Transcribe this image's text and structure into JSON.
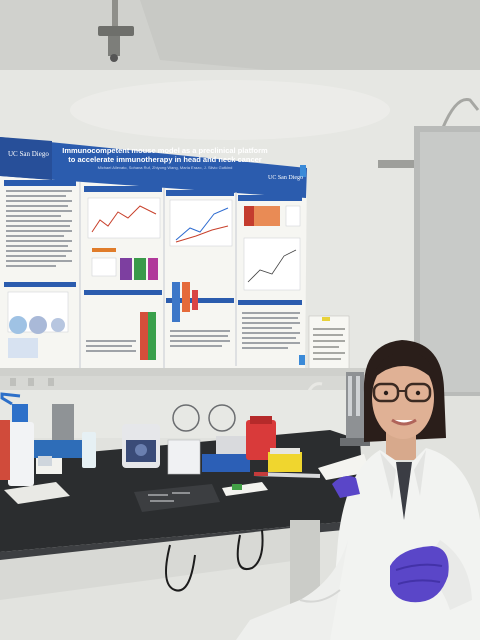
{
  "poster": {
    "title_line1": "Immunocompetent mouse model as a preclinical platform",
    "title_line2": "to accelerate immunotherapy in head and neck cancer",
    "authors": "Michael Allevato, Sohana Ruf, Zhiyong Wang, Maria Erazo, J. Silvio Gutkind",
    "logo_left": "UC San Diego",
    "logo_right": "UC San Diego"
  },
  "colors": {
    "wall": "#e4e5e1",
    "ceiling": "#cfd0cc",
    "poster_header": "#2b5cae",
    "poster_body": "#f7f7f3",
    "bench": "#2a2c2e",
    "lab_coat": "#f2f3f1",
    "glove": "#5a46c8"
  }
}
